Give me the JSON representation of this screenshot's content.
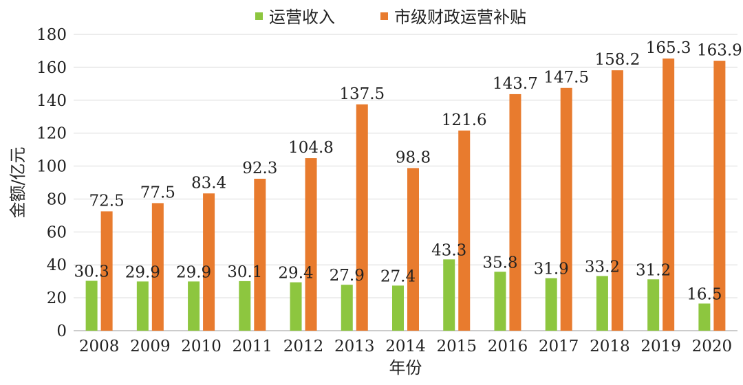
{
  "chart_data": {
    "type": "bar",
    "categories": [
      "2008",
      "2009",
      "2010",
      "2011",
      "2012",
      "2013",
      "2014",
      "2015",
      "2016",
      "2017",
      "2018",
      "2019",
      "2020"
    ],
    "series": [
      {
        "name": "运营收入",
        "color": "#8dc63f",
        "values": [
          30.3,
          29.9,
          29.9,
          30.1,
          29.4,
          27.9,
          27.4,
          43.3,
          35.8,
          31.9,
          33.2,
          31.2,
          16.5
        ]
      },
      {
        "name": "市级财政运营补贴",
        "color": "#e87b2e",
        "values": [
          72.5,
          77.5,
          83.4,
          92.3,
          104.8,
          137.5,
          98.8,
          121.6,
          143.7,
          147.5,
          158.2,
          165.3,
          163.9
        ]
      }
    ],
    "xlabel": "年份",
    "ylabel": "金额/亿元",
    "ylim": [
      0,
      180
    ],
    "yticks": [
      0,
      20,
      40,
      60,
      80,
      100,
      120,
      140,
      160,
      180
    ],
    "grid": true,
    "legend_position": "top"
  }
}
